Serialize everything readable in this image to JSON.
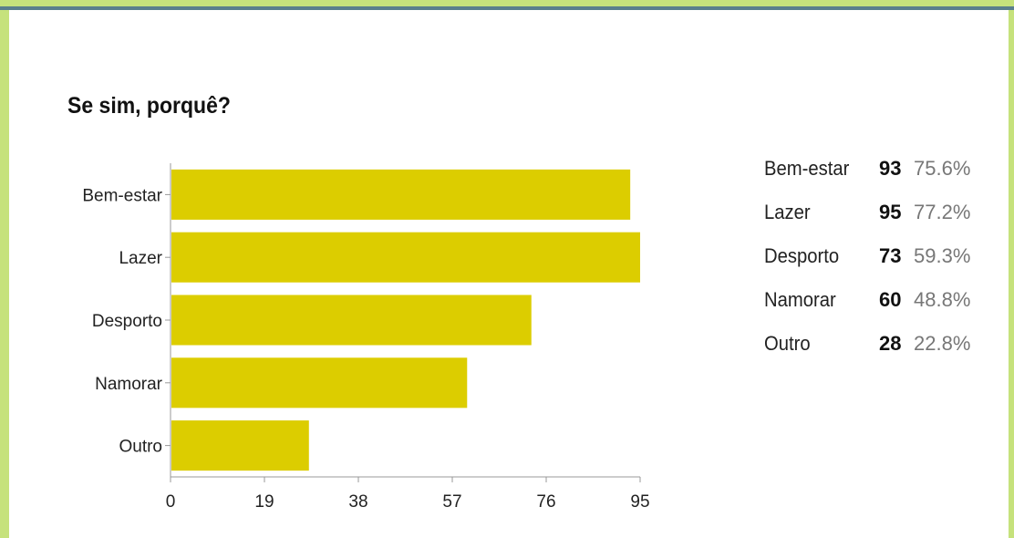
{
  "chart_data": {
    "type": "bar",
    "orientation": "horizontal",
    "title": "Se sim, porquê?",
    "categories": [
      "Bem-estar",
      "Lazer",
      "Desporto",
      "Namorar",
      "Outro"
    ],
    "values": [
      93,
      95,
      73,
      60,
      28
    ],
    "xlim": [
      0,
      95
    ],
    "xticks": [
      "0",
      "19",
      "38",
      "57",
      "76",
      "95"
    ],
    "bar_color": "#dccd00",
    "grid": false,
    "legend_position": "right",
    "table": [
      {
        "label": "Bem-estar",
        "count": "93",
        "percent": "75.6%"
      },
      {
        "label": "Lazer",
        "count": "95",
        "percent": "77.2%"
      },
      {
        "label": "Desporto",
        "count": "73",
        "percent": "59.3%"
      },
      {
        "label": "Namorar",
        "count": "60",
        "percent": "48.8%"
      },
      {
        "label": "Outro",
        "count": "28",
        "percent": "22.8%"
      }
    ]
  },
  "colors": {
    "frame": "#c6e27c",
    "top_line": "#5a7f8c",
    "bar": "#dccd00",
    "percent_text": "#777777"
  }
}
